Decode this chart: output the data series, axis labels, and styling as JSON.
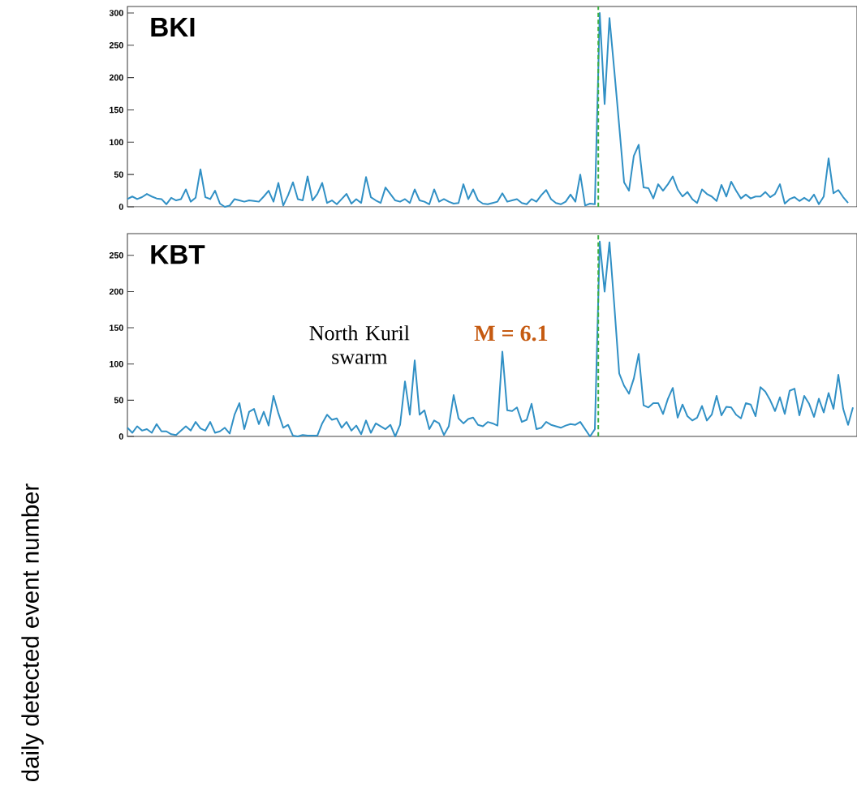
{
  "chart_data": [
    {
      "type": "line",
      "title": "BKI",
      "categories": [
        null,
        null,
        null,
        null,
        null,
        null,
        null,
        null,
        null,
        null,
        null,
        null,
        null,
        null,
        null,
        null,
        null,
        null,
        null,
        null,
        null,
        null,
        null,
        null,
        null,
        null,
        null,
        null,
        null,
        null,
        null,
        null,
        null,
        null,
        null,
        null,
        null,
        null,
        null,
        null,
        null,
        null,
        null,
        null,
        null,
        null,
        null,
        null,
        null,
        null,
        null,
        null,
        null,
        null,
        null,
        null,
        null,
        null,
        null,
        null,
        null,
        null,
        null,
        null,
        null,
        null,
        null,
        null,
        null,
        null,
        null,
        null,
        null,
        null,
        null,
        null,
        null,
        null,
        null,
        null,
        null,
        null,
        null,
        null,
        null,
        null,
        null,
        null,
        null,
        null,
        null,
        null,
        null,
        null,
        null,
        null,
        null,
        null,
        null,
        null,
        null,
        null,
        null,
        null,
        null,
        null,
        null,
        null,
        null,
        null,
        null,
        null,
        null,
        null,
        null,
        null,
        null,
        null,
        null,
        null,
        null,
        null,
        null,
        null,
        null,
        null,
        null,
        null,
        null,
        null,
        null,
        null,
        null,
        null,
        null,
        null,
        null,
        null,
        null,
        null,
        null,
        null,
        null,
        null,
        null,
        null,
        null,
        null,
        null,
        null
      ],
      "series": [
        {
          "color": "#3190c5",
          "values": [
            12,
            16,
            12,
            15,
            20,
            16,
            13,
            12,
            4,
            14,
            10,
            12,
            27,
            8,
            14,
            58,
            15,
            12,
            25,
            5,
            0,
            2,
            12,
            10,
            8,
            10,
            9,
            8,
            16,
            25,
            8,
            37,
            2,
            18,
            38,
            12,
            10,
            47,
            10,
            20,
            37,
            6,
            10,
            4,
            12,
            20,
            5,
            12,
            6,
            46,
            15,
            10,
            6,
            30,
            20,
            10,
            8,
            12,
            6,
            27,
            10,
            8,
            4,
            27,
            8,
            12,
            8,
            5,
            6,
            35,
            12,
            27,
            10,
            5,
            4,
            6,
            8,
            21,
            8,
            10,
            12,
            6,
            4,
            12,
            8,
            18,
            26,
            12,
            6,
            4,
            8,
            19,
            8,
            50,
            2,
            5,
            4,
            300,
            159,
            292,
            210,
            125,
            38,
            25,
            79,
            96,
            30,
            29,
            13,
            35,
            25,
            35,
            47,
            27,
            16,
            23,
            12,
            6,
            27,
            20,
            16,
            9,
            34,
            16,
            39,
            25,
            13,
            19,
            13,
            16,
            16,
            23,
            15,
            20,
            35,
            5,
            12,
            15,
            9,
            14,
            9,
            19,
            4,
            16,
            75,
            21,
            26,
            15,
            6,
            null
          ]
        }
      ],
      "ylim": [
        0,
        310
      ],
      "yticks": [
        0,
        50,
        100,
        150,
        200,
        250,
        300
      ]
    },
    {
      "type": "line",
      "title": "KBT",
      "ylabel": "daily detected event number",
      "categories": [
        null,
        null,
        null,
        null,
        null,
        null,
        null,
        null,
        null,
        null,
        null,
        null,
        null,
        null,
        null,
        null,
        null,
        null,
        null,
        null,
        null,
        null,
        null,
        null,
        null,
        null,
        null,
        null,
        null,
        null,
        null,
        null,
        null,
        null,
        null,
        null,
        null,
        null,
        null,
        null,
        null,
        null,
        null,
        null,
        null,
        null,
        null,
        null,
        null,
        null,
        null,
        null,
        null,
        null,
        null,
        null,
        null,
        null,
        null,
        null,
        null,
        null,
        null,
        null,
        null,
        null,
        null,
        null,
        null,
        null,
        null,
        null,
        null,
        null,
        null,
        null,
        null,
        null,
        null,
        null,
        null,
        null,
        null,
        null,
        null,
        null,
        null,
        null,
        null,
        null,
        null,
        null,
        null,
        null,
        null,
        null,
        null,
        null,
        null,
        null,
        null,
        null,
        null,
        null,
        null,
        null,
        null,
        null,
        null,
        null,
        null,
        null,
        null,
        null,
        null,
        null,
        null,
        null,
        null,
        null,
        null,
        null,
        null,
        null,
        null,
        null,
        null,
        null,
        null,
        null,
        null,
        null,
        null,
        null,
        null,
        null,
        null,
        null,
        null,
        null,
        null,
        null,
        null,
        null,
        null,
        null,
        null,
        null,
        null,
        null
      ],
      "series": [
        {
          "color": "#3190c5",
          "values": [
            12,
            5,
            14,
            8,
            10,
            5,
            17,
            7,
            7,
            3,
            2,
            8,
            14,
            8,
            20,
            11,
            8,
            20,
            5,
            7,
            12,
            4,
            30,
            46,
            10,
            34,
            38,
            17,
            34,
            15,
            56,
            32,
            12,
            16,
            1,
            0,
            2,
            1,
            1,
            1,
            18,
            30,
            23,
            25,
            12,
            20,
            8,
            15,
            3,
            22,
            5,
            18,
            14,
            10,
            16,
            0,
            16,
            76,
            30,
            105,
            30,
            36,
            10,
            22,
            18,
            2,
            14,
            57,
            25,
            18,
            24,
            26,
            16,
            14,
            20,
            18,
            15,
            117,
            36,
            35,
            40,
            20,
            23,
            45,
            10,
            12,
            20,
            16,
            14,
            12,
            15,
            17,
            16,
            20,
            10,
            0,
            10,
            269,
            200,
            268,
            180,
            87,
            70,
            59,
            80,
            114,
            43,
            40,
            46,
            46,
            31,
            52,
            67,
            26,
            44,
            28,
            22,
            26,
            42,
            22,
            30,
            56,
            29,
            41,
            40,
            30,
            25,
            46,
            44,
            28,
            68,
            62,
            50,
            35,
            54,
            31,
            63,
            66,
            29,
            56,
            45,
            27,
            52,
            33,
            60,
            38,
            85,
            38,
            16,
            40
          ]
        }
      ],
      "ylim": [
        0,
        280
      ],
      "yticks": [
        0,
        50,
        100,
        150,
        200,
        250
      ],
      "annotations": [
        "North Kuril swarm",
        "M = 6.1"
      ]
    }
  ]
}
